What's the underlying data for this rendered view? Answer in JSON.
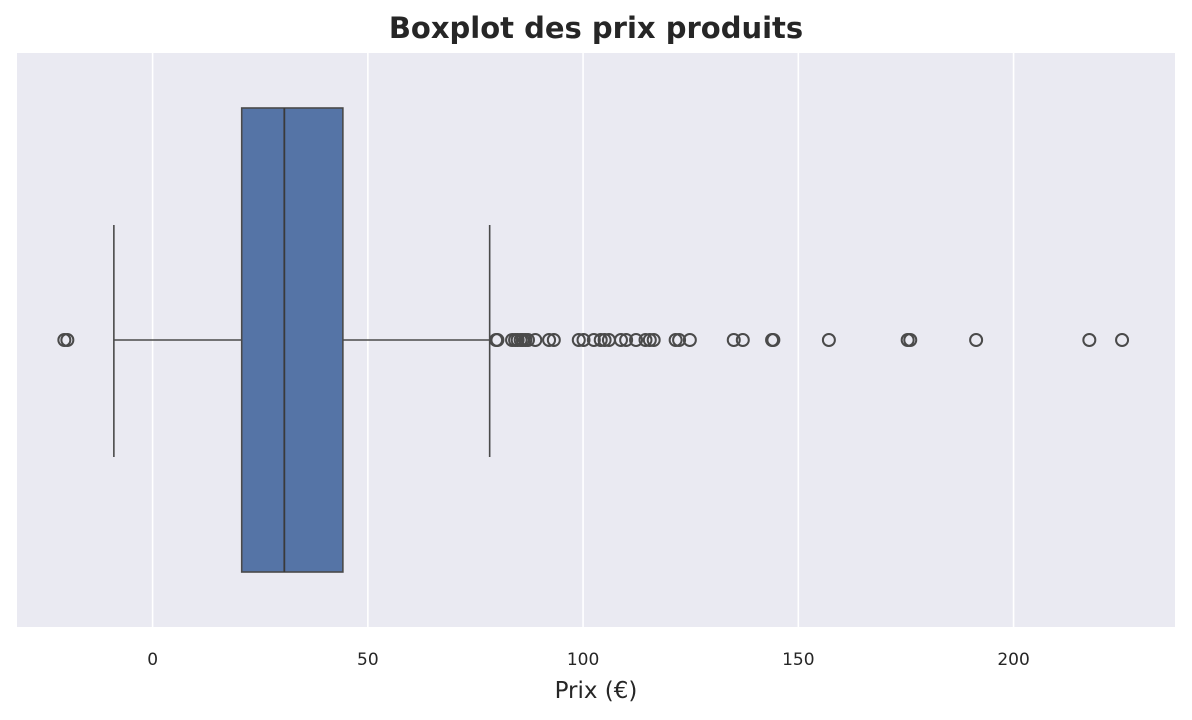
{
  "chart_data": {
    "type": "boxplot",
    "title": "Boxplot des prix produits",
    "xlabel": "Prix (€)",
    "ylabel": "",
    "orientation": "horizontal",
    "xlim": [
      -31.5,
      237.5
    ],
    "xticks": [
      0,
      50,
      100,
      150,
      200
    ],
    "xtick_labels": [
      "0",
      "50",
      "100",
      "150",
      "200"
    ],
    "grid": true,
    "colors": {
      "plot_background": "#eaeaf2",
      "grid": "#ffffff",
      "box_fill": "#5574a6",
      "box_edge": "#4a4a4a",
      "whisker": "#4a4a4a",
      "median": "#3a3a3a",
      "flier_edge": "#4a4a4a"
    },
    "box": {
      "whisker_low": -9,
      "q1": 20.7,
      "median": 30.6,
      "q3": 44.2,
      "whisker_high": 78.3
    },
    "outliers": [
      -20.5,
      -19.8,
      79.8,
      80.1,
      83.5,
      84.2,
      84.8,
      85.5,
      86.0,
      86.6,
      87.2,
      88.9,
      92.1,
      93.2,
      99.0,
      100.1,
      102.5,
      104.1,
      105.0,
      106.0,
      108.8,
      110.0,
      112.3,
      114.5,
      115.5,
      116.4,
      121.5,
      122.3,
      124.8,
      135.0,
      137.1,
      143.9,
      144.2,
      157.1,
      175.4,
      176.0,
      191.3,
      217.6,
      225.2
    ]
  }
}
